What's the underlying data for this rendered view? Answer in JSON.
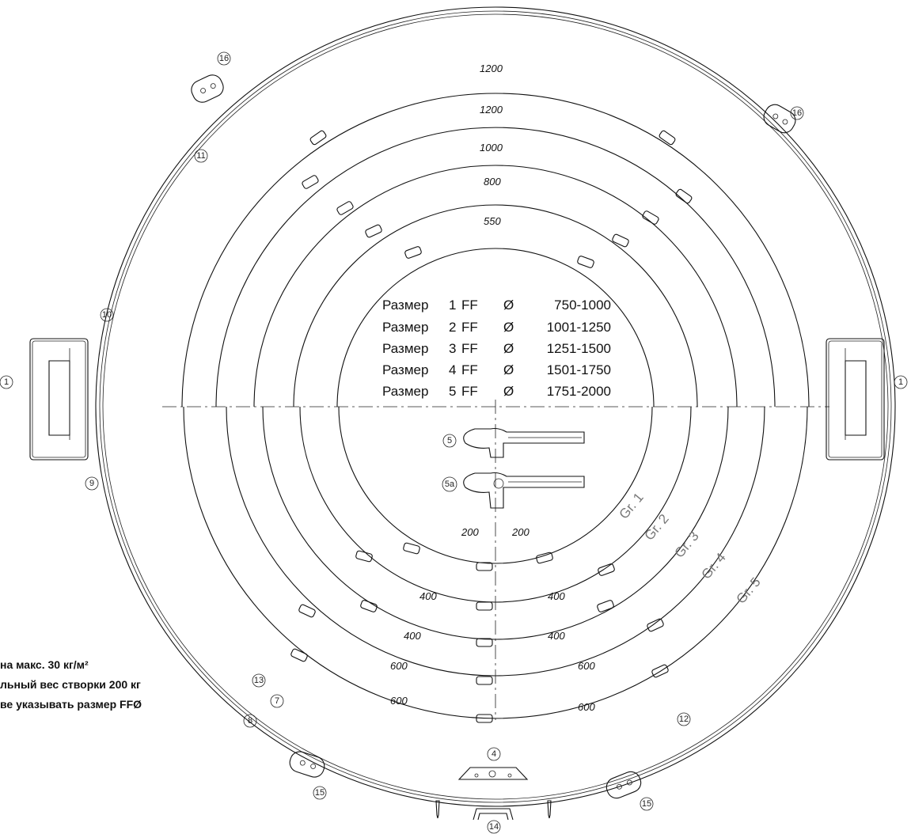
{
  "size_table": [
    {
      "label": "Размер",
      "num": "1",
      "ff": "FF",
      "sym": "Ø",
      "range": "750-1000"
    },
    {
      "label": "Размер",
      "num": "2",
      "ff": "FF",
      "sym": "Ø",
      "range": "1001-1250"
    },
    {
      "label": "Размер",
      "num": "3",
      "ff": "FF",
      "sym": "Ø",
      "range": "1251-1500"
    },
    {
      "label": "Размер",
      "num": "4",
      "ff": "FF",
      "sym": "Ø",
      "range": "1501-1750"
    },
    {
      "label": "Размер",
      "num": "5",
      "ff": "FF",
      "sym": "Ø",
      "range": "1751-2000"
    }
  ],
  "top_dimensions": [
    "1200",
    "1200",
    "1000",
    "800",
    "550"
  ],
  "bottom_dimensions": [
    "200",
    "200",
    "400",
    "400",
    "400",
    "400",
    "600",
    "600",
    "600",
    "600"
  ],
  "groups": [
    "Gr. 1",
    "Gr. 2",
    "Gr. 3",
    "Gr. 4",
    "Gr. 5"
  ],
  "part_numbers": [
    "1",
    "1",
    "4",
    "5",
    "5a",
    "7",
    "8",
    "9",
    "10",
    "11",
    "12",
    "13",
    "14",
    "15",
    "15",
    "16",
    "16"
  ],
  "notes": [
    "на макс. 30 кг/м²",
    "льный вес створки 200 кг",
    "ве указывать размер FFØ"
  ]
}
